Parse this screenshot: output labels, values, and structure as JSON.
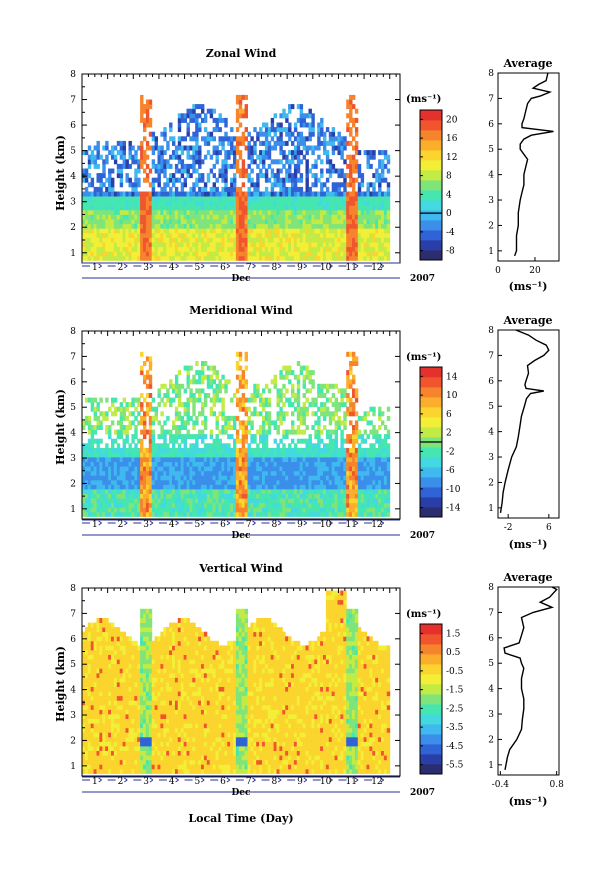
{
  "chart_data": [
    {
      "type": "heatmap",
      "title": "Zonal Wind",
      "ylabel": "Height (km)",
      "yticks": [
        "1",
        "2",
        "3",
        "4",
        "5",
        "6",
        "7",
        "8"
      ],
      "ylim": [
        0.6,
        8
      ],
      "xlabel": "Dec",
      "x_day_labels": [
        "1",
        "2",
        "3",
        "4",
        "5",
        "6",
        "7",
        "8",
        "9",
        "10",
        "11",
        "12"
      ],
      "year_label": "2007",
      "unit_label": "(ms⁻¹)",
      "colorbar_ticks": [
        "20",
        "16",
        "12",
        "8",
        "4",
        "0",
        "-4",
        "-8"
      ],
      "colorbar_range": [
        -10,
        22
      ],
      "average": {
        "title": "Average",
        "xlabel": "(ms⁻¹)",
        "xticks": [
          "0",
          "20"
        ],
        "xlim": [
          0,
          33
        ],
        "height_km": [
          0.8,
          1.0,
          1.3,
          1.6,
          2.0,
          2.5,
          3.0,
          3.3,
          3.6,
          4.0,
          4.3,
          4.6,
          4.8,
          5.0,
          5.2,
          5.4,
          5.55,
          5.7,
          5.85,
          6.0,
          6.2,
          6.5,
          6.8,
          7.0,
          7.1,
          7.25,
          7.4,
          7.55,
          7.7,
          8.0
        ],
        "wind_ms": [
          9,
          10,
          10,
          10,
          11,
          11,
          12,
          13,
          14,
          14,
          15,
          16,
          14,
          12,
          12,
          14,
          18,
          30,
          13,
          13,
          14,
          15,
          16,
          18,
          23,
          28,
          19,
          22,
          26,
          27
        ]
      }
    },
    {
      "type": "heatmap",
      "title": "Meridional Wind",
      "ylabel": "Height (km)",
      "yticks": [
        "1",
        "2",
        "3",
        "4",
        "5",
        "6",
        "7",
        "8"
      ],
      "ylim": [
        0.6,
        8
      ],
      "xlabel": "Dec",
      "x_day_labels": [
        "1",
        "2",
        "3",
        "4",
        "5",
        "6",
        "7",
        "8",
        "9",
        "10",
        "11",
        "12"
      ],
      "year_label": "2007",
      "unit_label": "(ms⁻¹)",
      "colorbar_ticks": [
        "14",
        "10",
        "6",
        "2",
        "-2",
        "-6",
        "-10",
        "-14"
      ],
      "colorbar_range": [
        -16,
        16
      ],
      "average": {
        "title": "Average",
        "xlabel": "(ms⁻¹)",
        "xticks": [
          "-2",
          "6"
        ],
        "xlim": [
          -4,
          8
        ],
        "height_km": [
          0.8,
          1.2,
          1.6,
          2.0,
          2.5,
          3.0,
          3.4,
          3.8,
          4.2,
          4.6,
          5.0,
          5.3,
          5.5,
          5.6,
          5.7,
          5.85,
          6.0,
          6.3,
          6.6,
          6.8,
          7.0,
          7.2,
          7.4,
          7.6,
          7.8,
          8.0
        ],
        "wind_ms": [
          -3.5,
          -3.2,
          -3,
          -2.6,
          -2,
          -1.3,
          -0.4,
          0,
          0.3,
          0.6,
          1.2,
          1.6,
          2.4,
          5,
          1.5,
          1.3,
          1.5,
          2,
          1.8,
          3.2,
          5,
          6,
          5.5,
          3.5,
          2,
          -0.5
        ]
      }
    },
    {
      "type": "heatmap",
      "title": "Vertical Wind",
      "ylabel": "Height (km)",
      "yticks": [
        "1",
        "2",
        "3",
        "4",
        "5",
        "6",
        "7",
        "8"
      ],
      "ylim": [
        0.6,
        8
      ],
      "xlabel": "Dec",
      "x_day_labels": [
        "1",
        "2",
        "3",
        "4",
        "5",
        "6",
        "7",
        "8",
        "9",
        "10",
        "11",
        "12"
      ],
      "year_label": "2007",
      "unit_label": "(ms⁻¹)",
      "colorbar_ticks": [
        "1.5",
        "0.5",
        "-0.5",
        "-1.5",
        "-2.5",
        "-3.5",
        "-4.5",
        "-5.5"
      ],
      "colorbar_range": [
        -6,
        2
      ],
      "average": {
        "title": "Average",
        "xlabel": "(ms⁻¹)",
        "xticks": [
          "-0.4",
          "0.8"
        ],
        "xlim": [
          -0.45,
          0.85
        ],
        "height_km": [
          0.8,
          1.0,
          1.3,
          1.6,
          2.0,
          2.4,
          2.8,
          3.2,
          3.6,
          4.0,
          4.4,
          4.8,
          5.0,
          5.2,
          5.4,
          5.6,
          5.8,
          6.1,
          6.4,
          6.8,
          7.0,
          7.2,
          7.4,
          7.6,
          7.9,
          8.0
        ],
        "wind_ms": [
          -0.3,
          -0.28,
          -0.25,
          -0.2,
          -0.05,
          0.05,
          0.07,
          0.1,
          0.1,
          0.05,
          0.05,
          0.1,
          0.05,
          0.02,
          -0.3,
          -0.32,
          0.0,
          0.05,
          0.1,
          0.05,
          0.3,
          0.7,
          0.45,
          0.65,
          0.8,
          0.7
        ]
      }
    }
  ],
  "footer": {
    "xlabel": "Local Time (Day)"
  }
}
